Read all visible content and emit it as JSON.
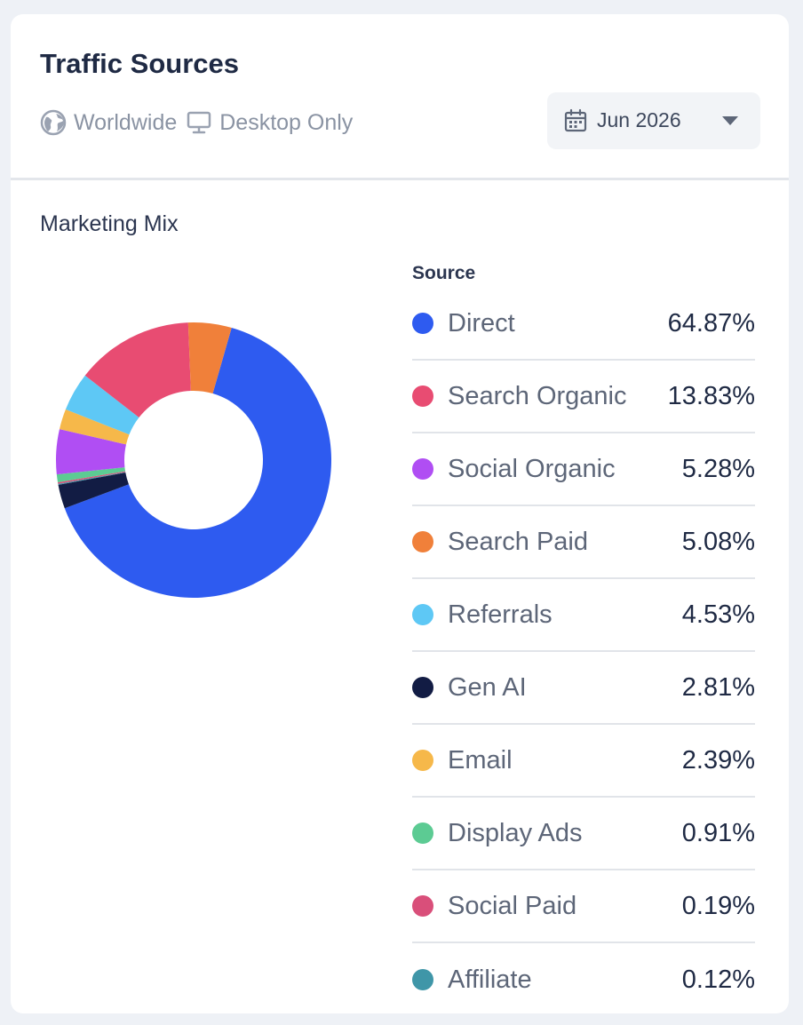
{
  "header": {
    "title": "Traffic Sources",
    "region": "Worldwide",
    "device": "Desktop Only",
    "date_selector": "Jun 2026"
  },
  "icons": {
    "region": "globe-icon",
    "device": "desktop-icon",
    "date": "calendar-icon",
    "dropdown": "chevron-down-icon"
  },
  "chart_data": {
    "type": "pie",
    "title": "Marketing Mix",
    "legend_header": "Source",
    "donut": true,
    "slices": [
      {
        "label": "Direct",
        "value": 64.87,
        "display": "64.87%",
        "color": "#2e5bf0"
      },
      {
        "label": "Search Organic",
        "value": 13.83,
        "display": "13.83%",
        "color": "#e84c72"
      },
      {
        "label": "Social Organic",
        "value": 5.28,
        "display": "5.28%",
        "color": "#b04ef3"
      },
      {
        "label": "Search Paid",
        "value": 5.08,
        "display": "5.08%",
        "color": "#f0803a"
      },
      {
        "label": "Referrals",
        "value": 4.53,
        "display": "4.53%",
        "color": "#5ec8f5"
      },
      {
        "label": "Gen AI",
        "value": 2.81,
        "display": "2.81%",
        "color": "#121c44"
      },
      {
        "label": "Email",
        "value": 2.39,
        "display": "2.39%",
        "color": "#f6b84a"
      },
      {
        "label": "Display Ads",
        "value": 0.91,
        "display": "0.91%",
        "color": "#5ccb93"
      },
      {
        "label": "Social Paid",
        "value": 0.19,
        "display": "0.19%",
        "color": "#d94f7a"
      },
      {
        "label": "Affiliate",
        "value": 0.12,
        "display": "0.12%",
        "color": "#3f96a8"
      }
    ]
  }
}
